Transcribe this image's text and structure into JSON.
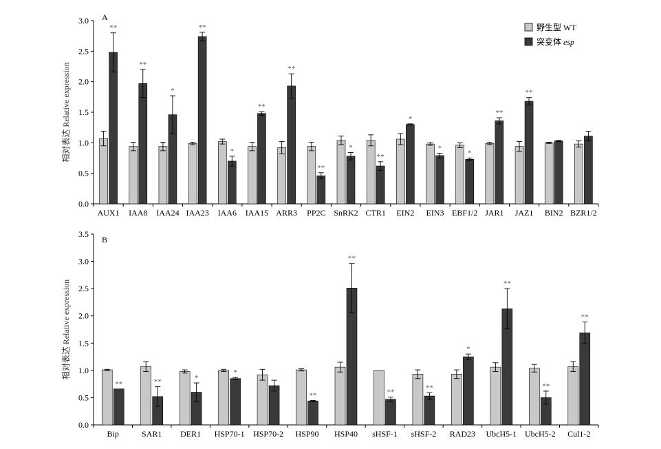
{
  "legend": {
    "wt_label": "野生型 WT",
    "mut_label_prefix": "突变体 ",
    "mut_label_italic": "esp"
  },
  "colors": {
    "wt": "#c8c8c8",
    "mutant": "#3a3a3a",
    "axis": "#000000"
  },
  "chart_data": [
    {
      "type": "bar",
      "panel": "A",
      "ylabel": "相对表达 Relative expression",
      "ylim": [
        0,
        3.0
      ],
      "yticks": [
        "0.0",
        "0.5",
        "1.0",
        "1.5",
        "2.0",
        "2.5",
        "3.0"
      ],
      "categories": [
        "AUX1",
        "IAA8",
        "IAA24",
        "IAA23",
        "IAA6",
        "IAA15",
        "ARR3",
        "PP2C",
        "SnRK2",
        "CTR1",
        "EIN2",
        "EIN3",
        "EBF1/2",
        "JAR1",
        "JAZ1",
        "BIN2",
        "BZR1/2"
      ],
      "series": [
        {
          "name": "野生型 WT",
          "values": [
            1.07,
            0.94,
            0.94,
            0.99,
            1.02,
            0.94,
            0.92,
            0.94,
            1.04,
            1.04,
            1.06,
            0.98,
            0.96,
            0.99,
            0.94,
            1.0,
            0.98
          ],
          "errors": [
            0.12,
            0.07,
            0.07,
            0.02,
            0.04,
            0.07,
            0.1,
            0.07,
            0.07,
            0.09,
            0.09,
            0.02,
            0.04,
            0.02,
            0.08,
            0.01,
            0.05
          ]
        },
        {
          "name": "突变体 esp",
          "values": [
            2.48,
            1.97,
            1.46,
            2.74,
            0.7,
            1.48,
            1.93,
            0.46,
            0.78,
            0.62,
            1.3,
            0.79,
            0.73,
            1.36,
            1.68,
            1.03,
            1.11
          ],
          "errors": [
            0.32,
            0.23,
            0.31,
            0.07,
            0.08,
            0.03,
            0.2,
            0.05,
            0.06,
            0.07,
            0.01,
            0.04,
            0.02,
            0.05,
            0.06,
            0.01,
            0.08
          ],
          "sig": [
            "**",
            "**",
            "*",
            "**",
            "*",
            "**",
            "**",
            "**",
            "*",
            "**",
            "*",
            "*",
            "*",
            "**",
            "**",
            "",
            ""
          ]
        }
      ]
    },
    {
      "type": "bar",
      "panel": "B",
      "ylabel": "相对表达 Relative expression",
      "ylim": [
        0,
        3.5
      ],
      "yticks": [
        "0.0",
        "0.5",
        "1.0",
        "1.5",
        "2.0",
        "2.5",
        "3.0",
        "3.5"
      ],
      "categories": [
        "Bip",
        "SAR1",
        "DER1",
        "HSP70-1",
        "HSP70-2",
        "HSP90",
        "HSP40",
        "sHSF-1",
        "sHSF-2",
        "RAD23",
        "UbcH5-1",
        "UbcH5-2",
        "Cul1-2"
      ],
      "series": [
        {
          "name": "野生型 WT",
          "values": [
            1.01,
            1.07,
            0.98,
            1.0,
            0.92,
            1.01,
            1.06,
            1.0,
            0.93,
            0.93,
            1.06,
            1.04,
            1.07
          ],
          "errors": [
            0.01,
            0.09,
            0.03,
            0.02,
            0.1,
            0.02,
            0.09,
            0.0,
            0.08,
            0.08,
            0.08,
            0.07,
            0.09
          ]
        },
        {
          "name": "突变体 esp",
          "values": [
            0.66,
            0.52,
            0.6,
            0.85,
            0.72,
            0.44,
            2.51,
            0.47,
            0.53,
            1.25,
            2.13,
            0.5,
            1.69
          ],
          "errors": [
            0.0,
            0.18,
            0.17,
            0.02,
            0.1,
            0.01,
            0.45,
            0.04,
            0.06,
            0.05,
            0.37,
            0.12,
            0.2
          ],
          "sig": [
            "**",
            "**",
            "*",
            "*",
            "",
            "**",
            "**",
            "**",
            "**",
            "*",
            "**",
            "**",
            "**"
          ]
        }
      ]
    }
  ]
}
